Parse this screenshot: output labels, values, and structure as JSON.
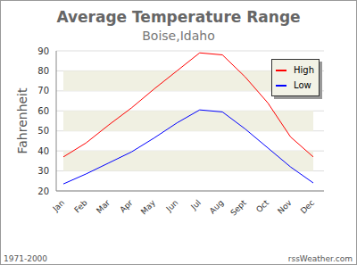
{
  "chart_data": {
    "type": "line",
    "title": "Average Temperature Range",
    "subtitle": "Boise,Idaho",
    "y_label": "Fahrenheit",
    "annotations": [
      "1971-2000",
      "rssWeather.com"
    ],
    "categories": [
      "Jan",
      "Feb",
      "Mar",
      "Apr",
      "May",
      "Jun",
      "Jul",
      "Aug",
      "Sept",
      "Oct",
      "Nov",
      "Dec"
    ],
    "series": [
      {
        "name": "High",
        "color": "#ff0000",
        "values": [
          37,
          44,
          53,
          61.5,
          71,
          80,
          89,
          88,
          77,
          64,
          47,
          37
        ]
      },
      {
        "name": "Low",
        "color": "#0000ff",
        "values": [
          23.5,
          28.5,
          34,
          39.5,
          46.5,
          54,
          60.5,
          59.5,
          51,
          41.5,
          32,
          24
        ]
      }
    ],
    "ylim": [
      20,
      90
    ],
    "yticks": [
      20,
      30,
      40,
      50,
      60,
      70,
      80,
      90
    ],
    "grid": true,
    "legend": "upper right"
  }
}
